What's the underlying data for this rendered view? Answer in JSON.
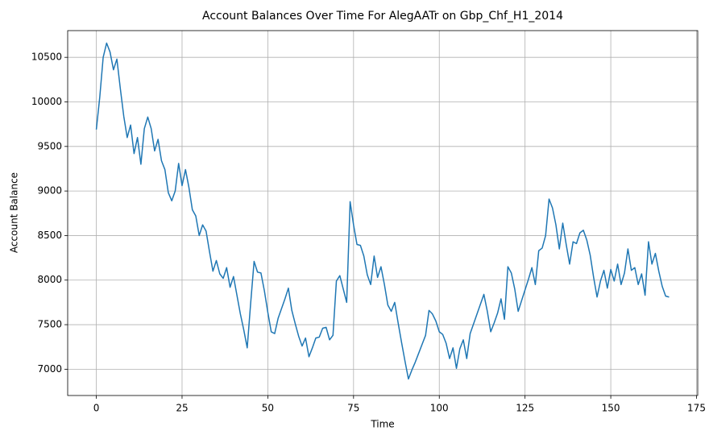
{
  "chart_data": {
    "type": "line",
    "title": "Account Balances Over Time For AlegAATr on Gbp_Chf_H1_2014",
    "x_label": "Time",
    "y_label": "Account Balance",
    "x": [
      0,
      1,
      2,
      3,
      4,
      5,
      6,
      7,
      8,
      9,
      10,
      11,
      12,
      13,
      14,
      15,
      16,
      17,
      18,
      19,
      20,
      21,
      22,
      23,
      24,
      25,
      26,
      27,
      28,
      29,
      30,
      31,
      32,
      33,
      34,
      35,
      36,
      37,
      38,
      39,
      40,
      41,
      42,
      43,
      44,
      45,
      46,
      47,
      48,
      49,
      50,
      51,
      52,
      53,
      54,
      55,
      56,
      57,
      58,
      59,
      60,
      61,
      62,
      63,
      64,
      65,
      66,
      67,
      68,
      69,
      70,
      71,
      72,
      73,
      74,
      75,
      76,
      77,
      78,
      79,
      80,
      81,
      82,
      83,
      84,
      85,
      86,
      87,
      88,
      89,
      90,
      91,
      92,
      93,
      94,
      95,
      96,
      97,
      98,
      99,
      100,
      101,
      102,
      103,
      104,
      105,
      106,
      107,
      108,
      109,
      110,
      111,
      112,
      113,
      114,
      115,
      116,
      117,
      118,
      119,
      120,
      121,
      122,
      123,
      124,
      125,
      126,
      127,
      128,
      129,
      130,
      131,
      132,
      133,
      134,
      135,
      136,
      137,
      138,
      139,
      140,
      141,
      142,
      143,
      144,
      145,
      146,
      147,
      148,
      149,
      150,
      151,
      152,
      153,
      154,
      155,
      156,
      157,
      158,
      159,
      160,
      161,
      162,
      163,
      164,
      165,
      166,
      167
    ],
    "series": [
      {
        "color": "#1f77b4",
        "values": [
          9690,
          10050,
          10500,
          10660,
          10560,
          10360,
          10480,
          10150,
          9840,
          9600,
          9740,
          9420,
          9600,
          9300,
          9700,
          9830,
          9700,
          9450,
          9580,
          9340,
          9240,
          8980,
          8890,
          9000,
          9310,
          9060,
          9240,
          9040,
          8790,
          8720,
          8500,
          8620,
          8550,
          8320,
          8100,
          8220,
          8070,
          8020,
          8140,
          7920,
          8040,
          7830,
          7620,
          7440,
          7240,
          7740,
          8210,
          8090,
          8080,
          7880,
          7640,
          7420,
          7400,
          7570,
          7680,
          7790,
          7910,
          7660,
          7510,
          7370,
          7260,
          7350,
          7140,
          7240,
          7350,
          7360,
          7460,
          7470,
          7330,
          7380,
          7990,
          8050,
          7900,
          7750,
          8880,
          8620,
          8400,
          8390,
          8270,
          8060,
          7950,
          8270,
          8030,
          8150,
          7950,
          7720,
          7650,
          7750,
          7520,
          7300,
          7090,
          6890,
          6990,
          7080,
          7180,
          7280,
          7380,
          7660,
          7620,
          7540,
          7420,
          7390,
          7290,
          7120,
          7240,
          7010,
          7230,
          7330,
          7120,
          7400,
          7510,
          7620,
          7730,
          7840,
          7650,
          7420,
          7520,
          7630,
          7790,
          7560,
          8150,
          8080,
          7900,
          7650,
          7770,
          7890,
          8010,
          8140,
          7950,
          8330,
          8360,
          8500,
          8910,
          8810,
          8620,
          8350,
          8640,
          8400,
          8180,
          8430,
          8410,
          8530,
          8560,
          8450,
          8280,
          8030,
          7810,
          7990,
          8110,
          7910,
          8120,
          7990,
          8180,
          7950,
          8080,
          8350,
          8110,
          8140,
          7950,
          8070,
          7830,
          8430,
          8180,
          8300,
          8100,
          7930,
          7820,
          7810
        ]
      }
    ],
    "xlim": [
      -8.35,
      175.35
    ],
    "xticks": [
      0,
      25,
      50,
      75,
      100,
      125,
      150,
      175
    ],
    "ylim": [
      6705,
      10800
    ],
    "yticks": [
      7000,
      7500,
      8000,
      8500,
      9000,
      9500,
      10000,
      10500
    ],
    "grid": true
  }
}
